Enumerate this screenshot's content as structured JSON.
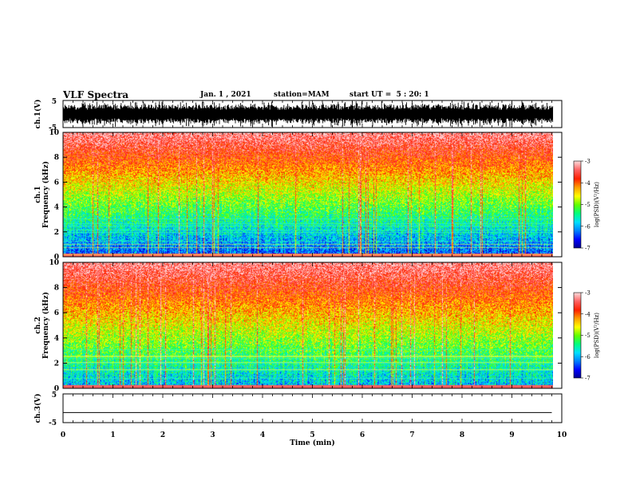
{
  "header": {
    "title": "VLF Spectra",
    "date": "Jan. 1 , 2021",
    "station": "station=MAM",
    "start": "start UT =  5 : 20: 1"
  },
  "colors": {
    "axis": "#000000",
    "colormap": [
      "#00008c",
      "#0000ff",
      "#0080ff",
      "#00e0ff",
      "#00ff80",
      "#60ff00",
      "#ffff00",
      "#ffa000",
      "#ff2000",
      "#ff6060",
      "#ffd8d8"
    ]
  },
  "chart_data": [
    {
      "type": "line",
      "panel": "ch1-waveform",
      "ylabel": "ch.1(V)",
      "ylim": [
        -5,
        5
      ],
      "yticks": [
        "5",
        "-5"
      ],
      "xlim": [
        0,
        10
      ],
      "description_values": {
        "amplitude_v": 5
      }
    },
    {
      "type": "heatmap",
      "panel": "ch1-spectrogram",
      "ylabel_a": "ch.1",
      "ylabel_b": "Frequency (kHz)",
      "ylim": [
        0,
        10
      ],
      "yticks": [
        "0",
        "2",
        "4",
        "6",
        "8",
        "10"
      ],
      "xlim": [
        0,
        10
      ],
      "colorbar": {
        "label": "log(PSD)(V²/Hz)",
        "ticks": [
          "-3",
          "-4",
          "-5",
          "-6",
          "-7"
        ],
        "range": [
          -7,
          -3
        ]
      }
    },
    {
      "type": "heatmap",
      "panel": "ch2-spectrogram",
      "ylabel_a": "ch.2",
      "ylabel_b": "Frequency (kHz)",
      "ylim": [
        0,
        10
      ],
      "yticks": [
        "0",
        "2",
        "4",
        "6",
        "8",
        "10"
      ],
      "xlim": [
        0,
        10
      ],
      "colorbar": {
        "label": "log(PSD)(V²/Hz)",
        "ticks": [
          "-3",
          "-4",
          "-5",
          "-6",
          "-7"
        ],
        "range": [
          -7,
          -3
        ]
      }
    },
    {
      "type": "line",
      "panel": "ch3-waveform",
      "ylabel": "ch.3(V)",
      "ylim": [
        -5,
        5
      ],
      "yticks": [
        "5",
        "-5"
      ],
      "xlim": [
        0,
        10
      ],
      "x": [
        0,
        9.8
      ],
      "y": [
        -1.5,
        -1.5
      ]
    }
  ],
  "xaxis": {
    "label": "Time (min)",
    "ticks": [
      "0",
      "1",
      "2",
      "3",
      "4",
      "5",
      "6",
      "7",
      "8",
      "9",
      "10"
    ]
  }
}
